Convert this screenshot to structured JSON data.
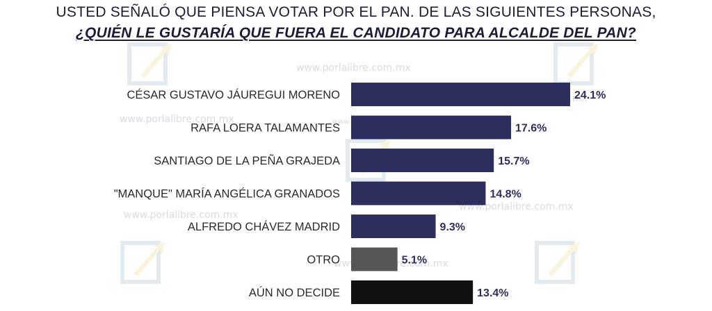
{
  "title": {
    "line1": "USTED SEÑALÓ QUE PIENSA VOTAR POR EL PAN. DE LAS SIGUIENTES PERSONAS,",
    "line2": "¿QUIÉN LE GUSTARÍA QUE FUERA EL CANDIDATO PARA ALCALDE DEL PAN?"
  },
  "watermark": {
    "text": "www.porlalibre.com.mx"
  },
  "chart_data": {
    "type": "bar",
    "orientation": "horizontal",
    "categories": [
      "CÉSAR GUSTAVO JÁUREGUI MORENO",
      "RAFA LOERA TALAMANTES",
      "SANTIAGO DE LA PEÑA GRAJEDA",
      "\"MANQUE\" MARÍA ANGÉLICA GRANADOS",
      "ALFREDO CHÁVEZ MADRID",
      "OTRO",
      "AÚN NO DECIDE"
    ],
    "values": [
      24.1,
      17.6,
      15.7,
      14.8,
      9.3,
      5.1,
      13.4
    ],
    "value_labels": [
      "24.1%",
      "17.6%",
      "15.7%",
      "14.8%",
      "9.3%",
      "5.1%",
      "13.4%"
    ],
    "colors": [
      "#2c2f5e",
      "#2c2f5e",
      "#2c2f5e",
      "#2c2f5e",
      "#2c2f5e",
      "#565656",
      "#111111"
    ],
    "xlim": [
      0,
      24.1
    ],
    "grid": false,
    "legend": "none"
  }
}
